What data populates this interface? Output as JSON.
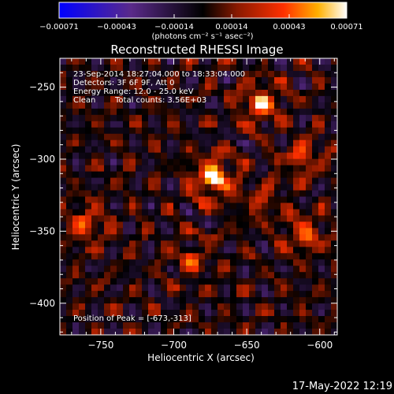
{
  "chart_data": {
    "type": "heatmap",
    "title": "Reconstructed RHESSI Image",
    "xlabel": "Heliocentric X (arcsec)",
    "ylabel": "Heliocentric Y (arcsec)",
    "xlim": [
      -778,
      -588
    ],
    "ylim": [
      -422,
      -230
    ],
    "xticks": [
      -750,
      -700,
      -650,
      -600
    ],
    "yticks": [
      -250,
      -300,
      -350,
      -400
    ],
    "colorbar": {
      "min": -0.00071,
      "max": 0.00071,
      "ticks": [
        "-0.00071",
        "-0.00043",
        "-0.00014",
        "0.00014",
        "0.00043",
        "0.00071"
      ],
      "unit_label": "(photons cm⁻² s⁻¹ asec⁻²)",
      "colors": [
        "#0000ff",
        "#5a2a8a",
        "#000000",
        "#8a1a00",
        "#ff3000",
        "#ffb000",
        "#ffffff"
      ]
    },
    "annotations": [
      "23-Sep-2014 18:27:04.000 to 18:33:04.000",
      "Detectors: 3F 6F 9F, Att 0",
      "Energy Range: 12.0 - 25.0 keV",
      "Clean",
      "Total counts: 3.56E+03"
    ],
    "peak_label": "Position of Peak = [-673,-313]",
    "peak": {
      "x": -673,
      "y": -313
    },
    "sources": [
      {
        "x": -673,
        "y": -313,
        "amp": 1.0
      },
      {
        "x": -640,
        "y": -262,
        "amp": 0.75
      },
      {
        "x": -612,
        "y": -300,
        "amp": 0.45
      },
      {
        "x": -760,
        "y": -345,
        "amp": 0.5
      },
      {
        "x": -610,
        "y": -352,
        "amp": 0.55
      },
      {
        "x": -690,
        "y": -370,
        "amp": 0.4
      },
      {
        "x": -640,
        "y": -330,
        "amp": 0.35
      }
    ]
  },
  "footer": {
    "timestamp": "17-May-2022 12:19"
  }
}
